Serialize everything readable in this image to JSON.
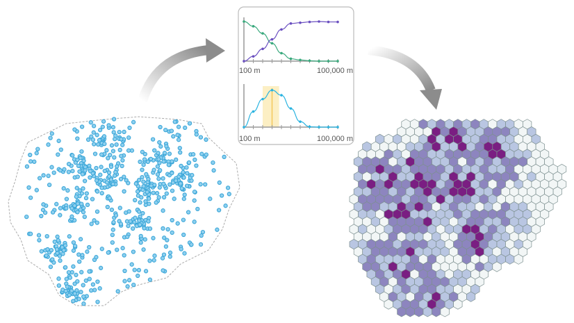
{
  "panel": {
    "top_chart": {
      "xmin_label": "100 m",
      "xmax_label": "100,000 m"
    },
    "bottom_chart": {
      "xmin_label": "100 m",
      "xmax_label": "100,000 m"
    }
  },
  "chart_data": [
    {
      "type": "line",
      "title": "",
      "x": [
        0,
        1,
        2,
        3,
        4,
        5,
        6,
        7,
        8,
        9,
        10
      ],
      "xlabel_min": "100 m",
      "xlabel_max": "100,000 m",
      "ylim": [
        0,
        1
      ],
      "series": [
        {
          "name": "green",
          "color": "#3aa97d",
          "values": [
            1.0,
            0.88,
            0.7,
            0.45,
            0.2,
            0.06,
            0.03,
            0.01,
            0.0,
            0.0,
            0.0
          ]
        },
        {
          "name": "purple",
          "color": "#6a4fc0",
          "values": [
            0.0,
            0.12,
            0.31,
            0.55,
            0.8,
            0.95,
            0.97,
            0.99,
            1.0,
            0.99,
            0.99
          ]
        }
      ]
    },
    {
      "type": "line",
      "title": "",
      "x": [
        0,
        1,
        2,
        3,
        4,
        5,
        6,
        7,
        8,
        9,
        10
      ],
      "xlabel_min": "100 m",
      "xlabel_max": "100,000 m",
      "ylim": [
        0,
        1
      ],
      "highlight_range": [
        2,
        3.75
      ],
      "series": [
        {
          "name": "cyan",
          "color": "#2ab3e0",
          "values": [
            0.0,
            0.4,
            0.72,
            0.95,
            0.82,
            0.48,
            0.14,
            0.01,
            0.0,
            0.0,
            0.0
          ]
        }
      ]
    }
  ],
  "colors": {
    "points": "#3aa6d8",
    "arrow": "#9a9a9a",
    "hex_levels": [
      "#f2f6f6",
      "#b9c6e2",
      "#8d85bf",
      "#7a1e82"
    ]
  }
}
